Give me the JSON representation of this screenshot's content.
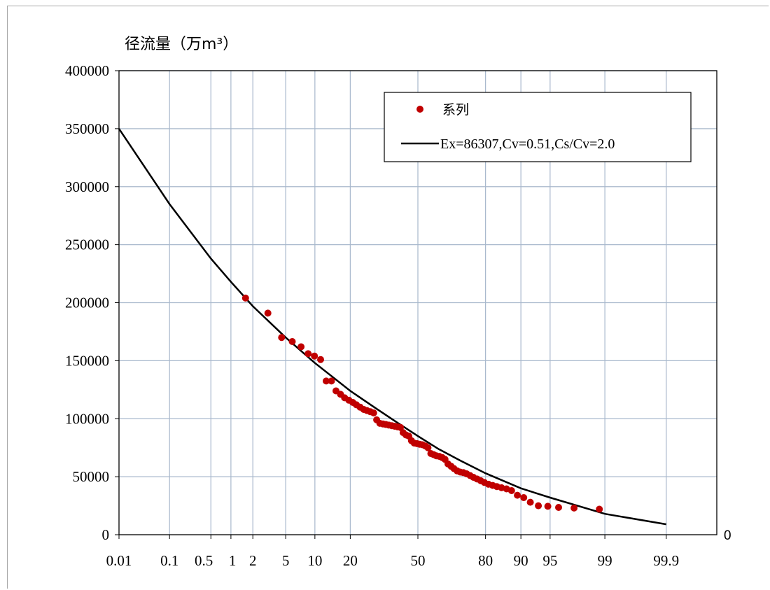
{
  "chart_data": {
    "type": "scatter",
    "ylabel": "径流量（万m³）",
    "xlabel": "",
    "x_scale": "normal-probability",
    "ylim": [
      0,
      400000
    ],
    "y_ticks": [
      0,
      50000,
      100000,
      150000,
      200000,
      250000,
      300000,
      350000,
      400000
    ],
    "y_tick_labels": [
      "0",
      "50000",
      "100000",
      "150000",
      "200000",
      "250000",
      "300000",
      "350000",
      "400000"
    ],
    "x_ticks": [
      0.01,
      0.1,
      0.5,
      1,
      2,
      5,
      10,
      20,
      50,
      80,
      90,
      95,
      99,
      99.9
    ],
    "x_tick_labels": [
      "0.01",
      "0.1",
      "0.5",
      "1",
      "2",
      "5",
      "10",
      "20",
      "50",
      "80",
      "90",
      "95",
      "99",
      "99.9"
    ],
    "xlim": [
      0.01,
      99.99
    ],
    "grid": true,
    "legend_position": "top-right",
    "stray_label": "0",
    "series": [
      {
        "name": "系列",
        "kind": "points",
        "color": "#c00000",
        "x": [
          1.6,
          3.1,
          4.5,
          5.9,
          7.3,
          8.6,
          9.9,
          11.3,
          12.7,
          14.1,
          15.4,
          16.8,
          18.1,
          19.5,
          20.9,
          22.2,
          23.6,
          25.0,
          26.3,
          27.7,
          29.1,
          30.4,
          31.8,
          33.2,
          34.5,
          35.9,
          37.3,
          38.6,
          40.0,
          41.4,
          42.7,
          44.1,
          45.5,
          46.8,
          48.2,
          49.6,
          50.9,
          52.3,
          53.7,
          55.0,
          56.4,
          57.8,
          59.1,
          60.5,
          61.9,
          63.2,
          64.6,
          66.0,
          67.3,
          68.7,
          70.1,
          71.4,
          72.8,
          74.2,
          75.5,
          76.9,
          78.3,
          79.6,
          81.0,
          82.4,
          83.7,
          85.1,
          86.5,
          87.8,
          89.2,
          90.6,
          91.9,
          93.3,
          94.7,
          96.0,
          97.4,
          98.8
        ],
        "y": [
          204000,
          191000,
          170000,
          166500,
          162000,
          156000,
          154000,
          151000,
          132500,
          132500,
          124000,
          121000,
          118000,
          116000,
          114000,
          112000,
          110000,
          108000,
          107000,
          106000,
          105000,
          99000,
          96000,
          95500,
          95000,
          94500,
          94000,
          93500,
          93000,
          92500,
          88000,
          86000,
          85000,
          81000,
          79000,
          78500,
          78000,
          77500,
          76500,
          75000,
          70000,
          69000,
          68000,
          67500,
          66500,
          65000,
          61000,
          59000,
          57000,
          55000,
          54000,
          53500,
          52500,
          51000,
          49500,
          48000,
          46500,
          45000,
          43500,
          42500,
          41500,
          40500,
          39500,
          38000,
          34000,
          32000,
          28000,
          25000,
          24500,
          23500,
          23000,
          22000
        ]
      },
      {
        "name": "Ex=86307,Cv=0.51,Cs/Cv=2.0",
        "kind": "line",
        "color": "#000000",
        "x": [
          0.01,
          0.1,
          0.5,
          1,
          2,
          5,
          10,
          20,
          30,
          40,
          50,
          60,
          70,
          80,
          90,
          95,
          99,
          99.9
        ],
        "y": [
          350000,
          285000,
          238000,
          218000,
          197000,
          170000,
          148000,
          124000,
          109000,
          96500,
          85000,
          74000,
          64000,
          53000,
          40000,
          32000,
          18000,
          9000
        ]
      }
    ]
  }
}
